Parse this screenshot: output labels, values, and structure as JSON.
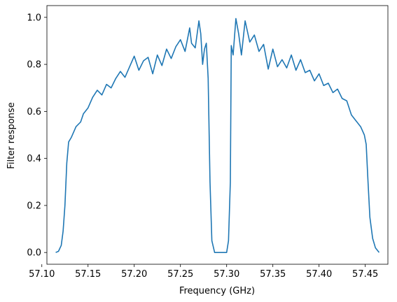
{
  "chart_data": {
    "type": "line",
    "title": "",
    "xlabel": "Frequency (GHz)",
    "ylabel": "Filter response",
    "xlim": [
      57.1055,
      57.4745
    ],
    "ylim": [
      -0.05,
      1.05
    ],
    "xticks": [
      57.1,
      57.15,
      57.2,
      57.25,
      57.3,
      57.35,
      57.4,
      57.45
    ],
    "xtick_labels": [
      "57.10",
      "57.15",
      "57.20",
      "57.25",
      "57.30",
      "57.35",
      "57.40",
      "57.45"
    ],
    "yticks": [
      0.0,
      0.2,
      0.4,
      0.6,
      0.8,
      1.0
    ],
    "ytick_labels": [
      "0.0",
      "0.2",
      "0.4",
      "0.6",
      "0.8",
      "1.0"
    ],
    "grid": false,
    "legend": "none",
    "series": [
      {
        "color": "#1f77b4",
        "points": [
          [
            57.115,
            0.0
          ],
          [
            57.118,
            0.005
          ],
          [
            57.121,
            0.03
          ],
          [
            57.123,
            0.09
          ],
          [
            57.125,
            0.2
          ],
          [
            57.127,
            0.38
          ],
          [
            57.129,
            0.47
          ],
          [
            57.132,
            0.49
          ],
          [
            57.137,
            0.535
          ],
          [
            57.142,
            0.555
          ],
          [
            57.145,
            0.59
          ],
          [
            57.15,
            0.615
          ],
          [
            57.155,
            0.66
          ],
          [
            57.16,
            0.69
          ],
          [
            57.165,
            0.67
          ],
          [
            57.17,
            0.715
          ],
          [
            57.175,
            0.7
          ],
          [
            57.18,
            0.74
          ],
          [
            57.185,
            0.77
          ],
          [
            57.19,
            0.745
          ],
          [
            57.195,
            0.79
          ],
          [
            57.2,
            0.835
          ],
          [
            57.205,
            0.775
          ],
          [
            57.21,
            0.815
          ],
          [
            57.215,
            0.83
          ],
          [
            57.22,
            0.76
          ],
          [
            57.225,
            0.84
          ],
          [
            57.23,
            0.795
          ],
          [
            57.235,
            0.865
          ],
          [
            57.24,
            0.825
          ],
          [
            57.245,
            0.875
          ],
          [
            57.25,
            0.905
          ],
          [
            57.255,
            0.855
          ],
          [
            57.26,
            0.955
          ],
          [
            57.262,
            0.89
          ],
          [
            57.266,
            0.87
          ],
          [
            57.27,
            0.985
          ],
          [
            57.272,
            0.93
          ],
          [
            57.274,
            0.8
          ],
          [
            57.276,
            0.865
          ],
          [
            57.278,
            0.89
          ],
          [
            57.28,
            0.74
          ],
          [
            57.282,
            0.3
          ],
          [
            57.284,
            0.05
          ],
          [
            57.287,
            0.0
          ],
          [
            57.3,
            0.0
          ],
          [
            57.302,
            0.05
          ],
          [
            57.304,
            0.3
          ],
          [
            57.305,
            0.88
          ],
          [
            57.307,
            0.84
          ],
          [
            57.31,
            0.995
          ],
          [
            57.313,
            0.93
          ],
          [
            57.316,
            0.84
          ],
          [
            57.32,
            0.985
          ],
          [
            57.325,
            0.895
          ],
          [
            57.33,
            0.925
          ],
          [
            57.335,
            0.855
          ],
          [
            57.34,
            0.885
          ],
          [
            57.345,
            0.78
          ],
          [
            57.35,
            0.865
          ],
          [
            57.355,
            0.79
          ],
          [
            57.36,
            0.82
          ],
          [
            57.365,
            0.785
          ],
          [
            57.37,
            0.84
          ],
          [
            57.375,
            0.775
          ],
          [
            57.38,
            0.82
          ],
          [
            57.385,
            0.765
          ],
          [
            57.39,
            0.775
          ],
          [
            57.395,
            0.73
          ],
          [
            57.4,
            0.76
          ],
          [
            57.405,
            0.71
          ],
          [
            57.41,
            0.72
          ],
          [
            57.415,
            0.68
          ],
          [
            57.42,
            0.695
          ],
          [
            57.425,
            0.655
          ],
          [
            57.43,
            0.645
          ],
          [
            57.435,
            0.585
          ],
          [
            57.44,
            0.56
          ],
          [
            57.445,
            0.535
          ],
          [
            57.449,
            0.5
          ],
          [
            57.451,
            0.46
          ],
          [
            57.453,
            0.3
          ],
          [
            57.455,
            0.15
          ],
          [
            57.458,
            0.06
          ],
          [
            57.461,
            0.02
          ],
          [
            57.465,
            0.0
          ]
        ]
      }
    ]
  }
}
